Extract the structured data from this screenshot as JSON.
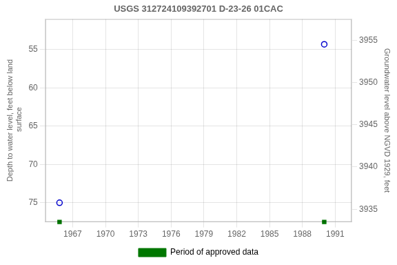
{
  "chart_data": {
    "type": "scatter",
    "title": "USGS 312724109392701 D-23-26 01CAC",
    "y_label": "Depth to water level, feet below land\n surface",
    "y2_label": "Groundwater level above NGVD 1929, feet",
    "xlim": [
      1964.5,
      1992.5
    ],
    "xticks": [
      1967,
      1970,
      1973,
      1976,
      1979,
      1982,
      1985,
      1988,
      1991
    ],
    "ylim": [
      77.5,
      51.0
    ],
    "yticks": [
      55,
      60,
      65,
      70,
      75
    ],
    "y2lim": [
      3933.5,
      3957.5
    ],
    "y2ticks": [
      3935,
      3940,
      3945,
      3950,
      3955
    ],
    "grid": true,
    "legend": "bottom",
    "series": [
      {
        "color": "#0000cc",
        "marker": "open_circle",
        "x": [
          1965.8,
          1990.0
        ],
        "values": [
          75.0,
          54.3
        ]
      },
      {
        "name": "Period of approved data",
        "color": "#007700",
        "marker": "square",
        "x": [
          1965.8,
          1990.0
        ]
      }
    ]
  }
}
